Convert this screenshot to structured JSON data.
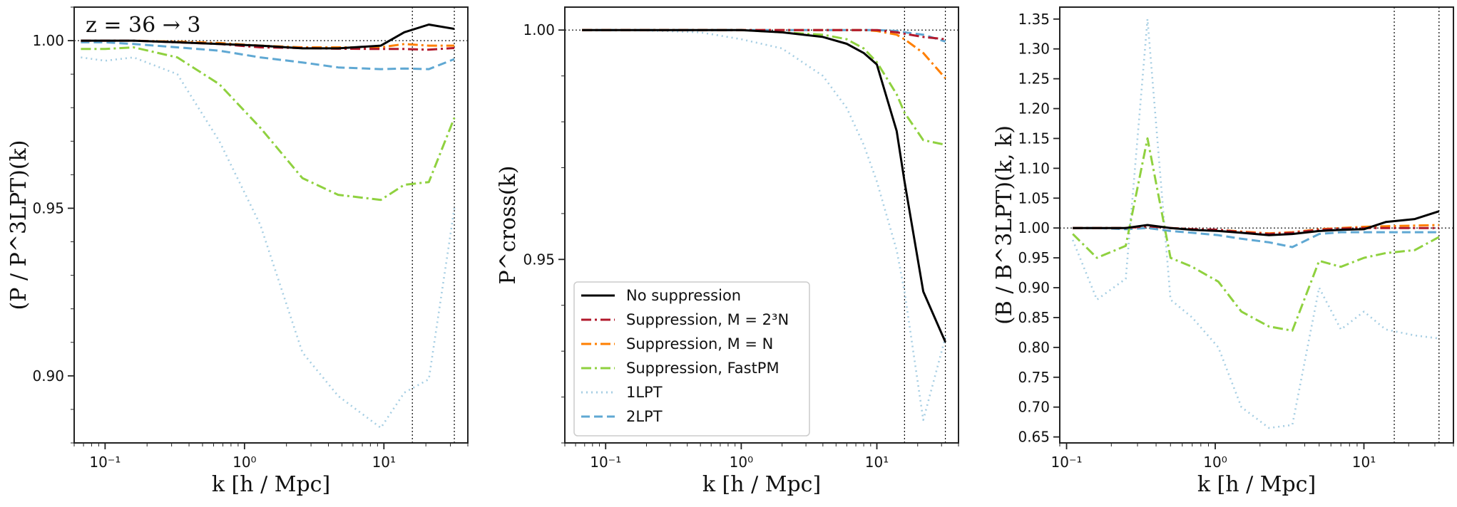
{
  "colors": {
    "no_suppression": "#000000",
    "supp_m2n": "#b2182b",
    "supp_mn": "#ff7f00",
    "supp_fastpm": "#8fd13f",
    "lpt1": "#a6cee3",
    "lpt2": "#5fa8d3"
  },
  "legend": {
    "items": [
      {
        "label": "No suppression",
        "key": "no_suppression",
        "dash": "solid"
      },
      {
        "label": "Suppression, M = 2³N",
        "key": "supp_m2n",
        "dash": "dashdot"
      },
      {
        "label": "Suppression, M = N",
        "key": "supp_mn",
        "dash": "dashdot"
      },
      {
        "label": "Suppression, FastPM",
        "key": "supp_fastpm",
        "dash": "dashdot"
      },
      {
        "label": "1LPT",
        "key": "lpt1",
        "dash": "dotted"
      },
      {
        "label": "2LPT",
        "key": "lpt2",
        "dash": "dashed"
      }
    ]
  },
  "chart_data": [
    {
      "type": "line",
      "annotation": "z = 36 → 3",
      "xlabel": "k [h / Mpc]",
      "ylabel": "(P / P^3LPT)(k)",
      "xscale": "log",
      "xlim": [
        0.06,
        40
      ],
      "ylim": [
        0.88,
        1.01
      ],
      "xticks": [
        {
          "v": 0.1,
          "label": "10⁻¹"
        },
        {
          "v": 1,
          "label": "10⁰"
        },
        {
          "v": 10,
          "label": "10¹"
        }
      ],
      "yticks": [
        {
          "v": 0.9,
          "label": "0.90"
        },
        {
          "v": 0.95,
          "label": "0.95"
        },
        {
          "v": 1.0,
          "label": "1.00"
        }
      ],
      "hline": 1.0,
      "vlines": [
        16,
        32
      ],
      "x": [
        0.067,
        0.1,
        0.16,
        0.33,
        0.66,
        1.3,
        2.6,
        4.7,
        9.5,
        14,
        21,
        32
      ],
      "series": [
        {
          "name": "No suppression",
          "key": "no_suppression",
          "values": [
            1.0,
            1.0,
            1.0,
            0.9995,
            0.999,
            0.9985,
            0.9977,
            0.9977,
            0.9985,
            1.0025,
            1.0048,
            1.0035
          ]
        },
        {
          "name": "Suppression, M=2^3N",
          "key": "supp_m2n",
          "values": [
            1.0,
            1.0,
            1.0,
            0.9995,
            0.999,
            0.998,
            0.9978,
            0.9976,
            0.9975,
            0.9975,
            0.9973,
            0.9978
          ]
        },
        {
          "name": "Suppression, M=N",
          "key": "supp_mn",
          "values": [
            1.0,
            1.0,
            1.0,
            0.9997,
            0.9993,
            0.9985,
            0.998,
            0.998,
            0.998,
            0.999,
            0.9985,
            0.9985
          ]
        },
        {
          "name": "Suppression, FastPM",
          "key": "supp_fastpm",
          "values": [
            0.9975,
            0.9975,
            0.998,
            0.995,
            0.987,
            0.974,
            0.959,
            0.954,
            0.9525,
            0.957,
            0.9578,
            0.977
          ]
        },
        {
          "name": "1LPT",
          "key": "lpt1",
          "values": [
            0.995,
            0.994,
            0.995,
            0.99,
            0.97,
            0.945,
            0.907,
            0.894,
            0.8845,
            0.895,
            0.899,
            0.95
          ]
        },
        {
          "name": "2LPT",
          "key": "lpt2",
          "values": [
            0.9995,
            0.9995,
            0.999,
            0.998,
            0.997,
            0.995,
            0.9935,
            0.992,
            0.9915,
            0.9917,
            0.9915,
            0.9945
          ]
        }
      ]
    },
    {
      "type": "line",
      "xlabel": "k [h / Mpc]",
      "ylabel": "P^cross(k)",
      "xscale": "log",
      "xlim": [
        0.05,
        40
      ],
      "ylim": [
        0.91,
        1.005
      ],
      "xticks": [
        {
          "v": 0.1,
          "label": "10⁻¹"
        },
        {
          "v": 1,
          "label": "10⁰"
        },
        {
          "v": 10,
          "label": "10¹"
        }
      ],
      "yticks": [
        {
          "v": 0.95,
          "label": "0.95"
        },
        {
          "v": 1.0,
          "label": "1.00"
        }
      ],
      "hline": 1.0,
      "vlines": [
        16,
        32
      ],
      "x": [
        0.067,
        0.16,
        0.5,
        1.0,
        2.0,
        4.0,
        6.0,
        8.0,
        10.0,
        14,
        16,
        22,
        32
      ],
      "series": [
        {
          "name": "No suppression",
          "key": "no_suppression",
          "values": [
            1.0,
            1.0,
            1.0,
            1.0,
            0.9995,
            0.9985,
            0.997,
            0.995,
            0.9925,
            0.978,
            0.967,
            0.943,
            0.932
          ]
        },
        {
          "name": "Suppression, M=2^3N",
          "key": "supp_m2n",
          "values": [
            1.0,
            1.0,
            1.0,
            1.0,
            1.0,
            1.0,
            1.0,
            1.0,
            1.0,
            0.9995,
            0.9992,
            0.9985,
            0.998
          ]
        },
        {
          "name": "Suppression, M=N",
          "key": "supp_mn",
          "values": [
            1.0,
            1.0,
            1.0,
            1.0,
            1.0,
            1.0,
            1.0,
            1.0,
            0.9998,
            0.999,
            0.998,
            0.995,
            0.9895
          ]
        },
        {
          "name": "Suppression, FastPM",
          "key": "supp_fastpm",
          "values": [
            1.0,
            1.0,
            1.0,
            1.0,
            0.9995,
            0.999,
            0.998,
            0.996,
            0.993,
            0.986,
            0.982,
            0.976,
            0.975
          ]
        },
        {
          "name": "1LPT",
          "key": "lpt1",
          "values": [
            1.0,
            1.0,
            0.9995,
            0.998,
            0.996,
            0.99,
            0.983,
            0.975,
            0.967,
            0.952,
            0.943,
            0.915,
            0.933
          ]
        },
        {
          "name": "2LPT",
          "key": "lpt2",
          "values": [
            1.0,
            1.0,
            1.0,
            1.0,
            1.0,
            1.0,
            1.0,
            1.0,
            1.0,
            0.9998,
            0.9995,
            0.999,
            0.9975
          ]
        }
      ]
    },
    {
      "type": "line",
      "xlabel": "k [h / Mpc]",
      "ylabel": "(B / B^3LPT)(k, k)",
      "xscale": "log",
      "xlim": [
        0.09,
        40
      ],
      "ylim": [
        0.64,
        1.37
      ],
      "xticks": [
        {
          "v": 0.1,
          "label": "10⁻¹"
        },
        {
          "v": 1,
          "label": "10⁰"
        },
        {
          "v": 10,
          "label": "10¹"
        }
      ],
      "yticks": [
        {
          "v": 0.65,
          "label": "0.65"
        },
        {
          "v": 0.7,
          "label": "0.70"
        },
        {
          "v": 0.75,
          "label": "0.75"
        },
        {
          "v": 0.8,
          "label": "0.80"
        },
        {
          "v": 0.85,
          "label": "0.85"
        },
        {
          "v": 0.9,
          "label": "0.90"
        },
        {
          "v": 0.95,
          "label": "0.95"
        },
        {
          "v": 1.0,
          "label": "1.00"
        },
        {
          "v": 1.05,
          "label": "1.05"
        },
        {
          "v": 1.1,
          "label": "1.10"
        },
        {
          "v": 1.15,
          "label": "1.15"
        },
        {
          "v": 1.2,
          "label": "1.20"
        },
        {
          "v": 1.25,
          "label": "1.25"
        },
        {
          "v": 1.3,
          "label": "1.30"
        },
        {
          "v": 1.35,
          "label": "1.35"
        }
      ],
      "hline": 1.0,
      "vlines": [
        16,
        32
      ],
      "x": [
        0.11,
        0.16,
        0.25,
        0.35,
        0.5,
        0.7,
        1.05,
        1.5,
        2.3,
        3.3,
        5.0,
        7.0,
        10,
        14,
        22,
        32
      ],
      "series": [
        {
          "name": "No suppression",
          "key": "no_suppression",
          "values": [
            1.0,
            1.0,
            1.0,
            1.005,
            1.0,
            0.997,
            0.995,
            0.992,
            0.988,
            0.99,
            0.995,
            0.997,
            0.998,
            1.01,
            1.015,
            1.028
          ]
        },
        {
          "name": "Suppression, M=2^3N",
          "key": "supp_m2n",
          "values": [
            1.0,
            1.0,
            1.0,
            1.003,
            1.0,
            0.998,
            0.997,
            0.993,
            0.99,
            0.992,
            0.997,
            0.999,
            1.0,
            1.0,
            1.0,
            1.0
          ]
        },
        {
          "name": "Suppression, M=N",
          "key": "supp_mn",
          "values": [
            1.0,
            1.0,
            1.0,
            1.003,
            1.0,
            0.998,
            0.997,
            0.994,
            0.991,
            0.993,
            0.998,
            1.0,
            1.002,
            1.003,
            1.004,
            1.005
          ]
        },
        {
          "name": "Suppression, FastPM",
          "key": "supp_fastpm",
          "values": [
            0.99,
            0.95,
            0.97,
            1.15,
            0.95,
            0.935,
            0.91,
            0.86,
            0.835,
            0.828,
            0.945,
            0.935,
            0.95,
            0.958,
            0.963,
            0.985
          ]
        },
        {
          "name": "1LPT",
          "key": "lpt1",
          "values": [
            0.98,
            0.88,
            0.915,
            1.35,
            0.88,
            0.85,
            0.8,
            0.7,
            0.665,
            0.67,
            0.9,
            0.83,
            0.86,
            0.83,
            0.82,
            0.815
          ]
        },
        {
          "name": "2LPT",
          "key": "lpt2",
          "values": [
            1.0,
            1.0,
            0.998,
            1.0,
            0.995,
            0.992,
            0.988,
            0.982,
            0.976,
            0.968,
            0.99,
            0.993,
            0.993,
            0.993,
            0.993,
            0.993
          ]
        }
      ]
    }
  ]
}
